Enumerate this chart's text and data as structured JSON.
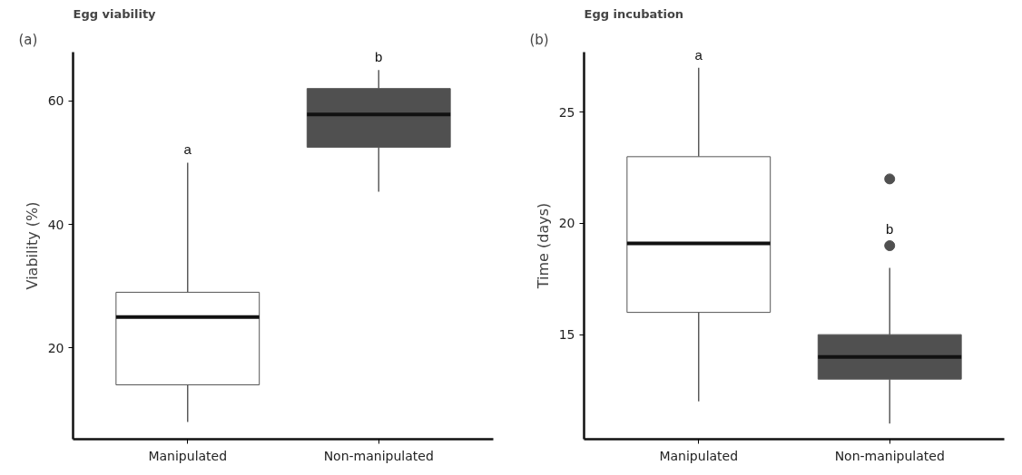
{
  "chart_data": [
    {
      "type": "box",
      "title": "(a)",
      "subtitle": "Egg viability",
      "ylabel": "Viability (%)",
      "categories": [
        "Manipulated",
        "Non-manipulated"
      ],
      "boxes": [
        {
          "low": 8,
          "q1": 14,
          "median": 25,
          "q3": 29,
          "high": 50
        },
        {
          "low": 45.3,
          "q1": 52.5,
          "median": 57.8,
          "q3": 62,
          "high": 65
        }
      ],
      "colors": [
        "#ffffff",
        "#505050"
      ],
      "ylim": [
        5.2,
        67.9
      ],
      "yticks": [
        20,
        40,
        60
      ],
      "grid": false,
      "annotations": [
        "a",
        "b"
      ]
    },
    {
      "type": "box",
      "title": "(b)",
      "subtitle": "Egg incubation",
      "ylabel": "Time (days)",
      "categories": [
        "Manipulated",
        "Non-manipulated"
      ],
      "boxes": [
        {
          "low": 12,
          "q1": 16,
          "median": 19.1,
          "q3": 23,
          "high": 27
        },
        {
          "low": 11,
          "q1": 13,
          "median": 14,
          "q3": 15,
          "high": 18,
          "outliers": [
            19,
            22
          ]
        }
      ],
      "colors": [
        "#ffffff",
        "#505050"
      ],
      "ylim": [
        10.3,
        27.7
      ],
      "yticks": [
        15,
        20,
        25
      ],
      "grid": false,
      "annotations": [
        "a",
        "b"
      ]
    }
  ]
}
